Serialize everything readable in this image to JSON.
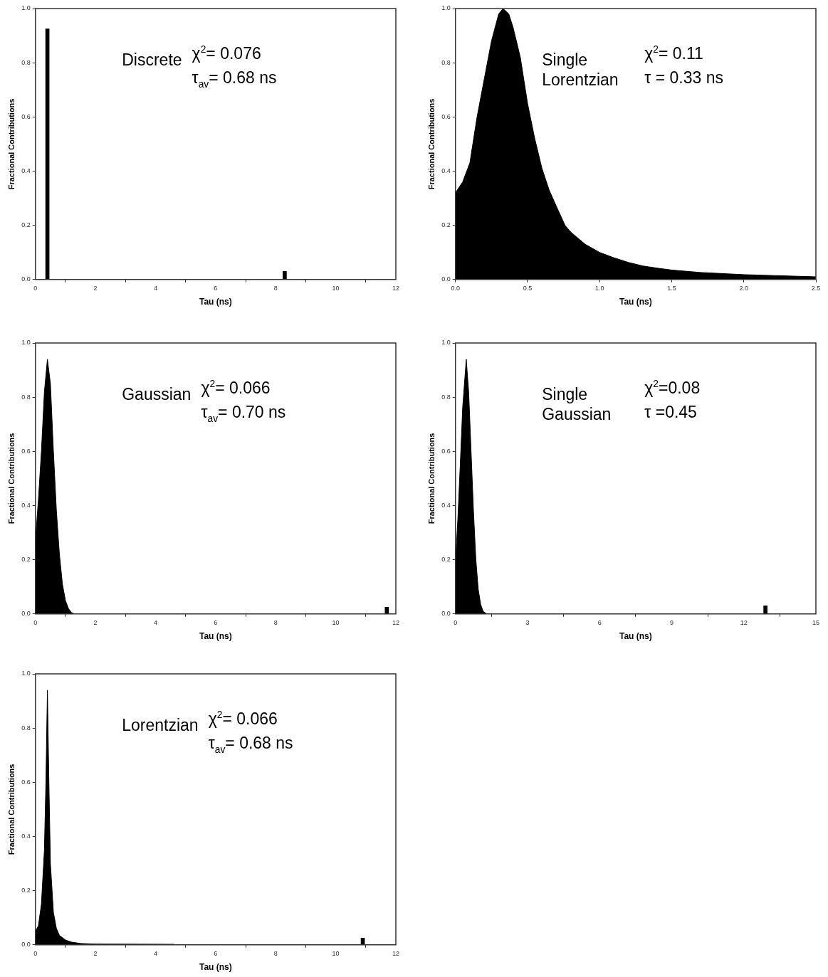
{
  "chart_data": [
    {
      "type": "bar",
      "xlabel": "Tau (ns)",
      "ylabel": "Fractional Contributions",
      "xlim": [
        0,
        12
      ],
      "ylim": [
        0,
        1
      ],
      "xticks": [
        0,
        2,
        4,
        6,
        8,
        10,
        12
      ],
      "yticks": [
        {
          "value": 0,
          "label": "0.0"
        },
        {
          "value": 0.2,
          "label": "0.2"
        },
        {
          "value": 0.4,
          "label": "0.4"
        },
        {
          "value": 0.6,
          "label": "0.6"
        },
        {
          "value": 0.8,
          "label": "0.8"
        },
        {
          "value": 1,
          "label": "1.0"
        }
      ],
      "annotations": [
        "Discrete",
        "χ$^{2}$= 0.076",
        "τ$_{av}$= 0.68 ns"
      ],
      "series": [
        {
          "color": "#000000",
          "x": [
            0.4,
            8.3
          ],
          "values": [
            0.925,
            0.03
          ]
        }
      ]
    },
    {
      "type": "area",
      "xlabel": "Tau (ns)",
      "ylabel": "Fractional Contributions",
      "xlim": [
        0,
        2.5
      ],
      "ylim": [
        0,
        1
      ],
      "xticks": [
        {
          "value": 0,
          "label": "0.0"
        },
        {
          "value": 0.5,
          "label": "0.5"
        },
        {
          "value": 1,
          "label": "1.0"
        },
        {
          "value": 1.5,
          "label": "1.5"
        },
        {
          "value": 2,
          "label": "2.0"
        },
        {
          "value": 2.5,
          "label": "2.5"
        }
      ],
      "yticks": [
        {
          "value": 0,
          "label": "0.0"
        },
        {
          "value": 0.2,
          "label": "0.2"
        },
        {
          "value": 0.4,
          "label": "0.4"
        },
        {
          "value": 0.6,
          "label": "0.6"
        },
        {
          "value": 0.8,
          "label": "0.8"
        },
        {
          "value": 1,
          "label": "1.0"
        }
      ],
      "annotations": [
        "Single Lorentzian",
        "χ$^{2}$= 0.11",
        "τ = 0.33 ns"
      ],
      "series": [
        {
          "color": "#000000",
          "x": [
            0,
            0.05,
            0.1,
            0.15,
            0.2,
            0.25,
            0.3,
            0.33,
            0.37,
            0.4,
            0.45,
            0.5,
            0.55,
            0.6,
            0.65,
            0.7,
            0.76,
            0.8,
            0.9,
            1.0,
            1.1,
            1.2,
            1.3,
            1.4,
            1.5,
            1.7,
            2.0,
            2.5
          ],
          "values": [
            0.32,
            0.36,
            0.43,
            0.6,
            0.74,
            0.88,
            0.98,
            1.0,
            0.98,
            0.93,
            0.82,
            0.65,
            0.52,
            0.41,
            0.33,
            0.27,
            0.2,
            0.175,
            0.13,
            0.1,
            0.08,
            0.063,
            0.05,
            0.042,
            0.035,
            0.026,
            0.018,
            0.01
          ]
        }
      ]
    },
    {
      "type": "area",
      "xlabel": "Tau (ns)",
      "ylabel": "Fractional Contributions",
      "xlim": [
        0,
        12
      ],
      "ylim": [
        0,
        1
      ],
      "xticks": [
        0,
        2,
        4,
        6,
        8,
        10,
        12
      ],
      "yticks": [
        {
          "value": 0,
          "label": "0.0"
        },
        {
          "value": 0.2,
          "label": "0.2"
        },
        {
          "value": 0.4,
          "label": "0.4"
        },
        {
          "value": 0.6,
          "label": "0.6"
        },
        {
          "value": 0.8,
          "label": "0.8"
        },
        {
          "value": 1,
          "label": "1.0"
        }
      ],
      "annotations": [
        "Gaussian",
        "χ$^{2}$= 0.066",
        "τ$_{av}$= 0.70 ns"
      ],
      "series": [
        {
          "color": "#000000",
          "x": [
            0,
            0.1,
            0.2,
            0.3,
            0.4,
            0.5,
            0.6,
            0.7,
            0.8,
            0.9,
            1.0,
            1.1,
            1.2,
            1.3,
            12
          ],
          "values": [
            0.27,
            0.42,
            0.6,
            0.82,
            0.94,
            0.85,
            0.6,
            0.38,
            0.22,
            0.11,
            0.05,
            0.02,
            0.005,
            0,
            0
          ]
        },
        {
          "type": "bar",
          "color": "#000000",
          "x": [
            11.7
          ],
          "values": [
            0.025
          ]
        }
      ]
    },
    {
      "type": "area",
      "xlabel": "Tau (ns)",
      "ylabel": "Fractional Contributions",
      "xlim": [
        0,
        15
      ],
      "ylim": [
        0,
        1
      ],
      "xticks": [
        0,
        3,
        6,
        9,
        12,
        15
      ],
      "yticks": [
        {
          "value": 0,
          "label": "0.0"
        },
        {
          "value": 0.2,
          "label": "0.2"
        },
        {
          "value": 0.4,
          "label": "0.4"
        },
        {
          "value": 0.6,
          "label": "0.6"
        },
        {
          "value": 0.8,
          "label": "0.8"
        },
        {
          "value": 1,
          "label": "1.0"
        }
      ],
      "annotations": [
        "Single Gaussian",
        "χ$^{2}$=0.08",
        "τ =0.45"
      ],
      "series": [
        {
          "color": "#000000",
          "x": [
            0,
            0.1,
            0.2,
            0.3,
            0.45,
            0.55,
            0.65,
            0.75,
            0.85,
            0.95,
            1.05,
            1.15,
            1.3,
            15
          ],
          "values": [
            0.19,
            0.35,
            0.55,
            0.76,
            0.94,
            0.82,
            0.6,
            0.38,
            0.2,
            0.09,
            0.035,
            0.01,
            0,
            0
          ]
        },
        {
          "type": "bar",
          "color": "#000000",
          "x": [
            12.9
          ],
          "values": [
            0.03
          ]
        }
      ]
    },
    {
      "type": "area",
      "xlabel": "Tau (ns)",
      "ylabel": "Fractional Contributions",
      "xlim": [
        0,
        12
      ],
      "ylim": [
        0,
        1
      ],
      "xticks": [
        0,
        2,
        4,
        6,
        8,
        10,
        12
      ],
      "yticks": [
        {
          "value": 0,
          "label": "0.0"
        },
        {
          "value": 0.2,
          "label": "0.2"
        },
        {
          "value": 0.4,
          "label": "0.4"
        },
        {
          "value": 0.6,
          "label": "0.6"
        },
        {
          "value": 0.8,
          "label": "0.8"
        },
        {
          "value": 1,
          "label": "1.0"
        }
      ],
      "annotations": [
        "Lorentzian",
        "χ$^{2}$= 0.066",
        "τ$_{av}$= 0.68 ns"
      ],
      "series": [
        {
          "color": "#000000",
          "x": [
            0,
            0.1,
            0.2,
            0.3,
            0.35,
            0.4,
            0.45,
            0.5,
            0.6,
            0.7,
            0.8,
            1.0,
            1.2,
            1.5,
            2.0,
            4.6,
            4.65,
            12
          ],
          "values": [
            0.05,
            0.07,
            0.15,
            0.35,
            0.6,
            0.94,
            0.6,
            0.3,
            0.12,
            0.06,
            0.035,
            0.018,
            0.01,
            0.005,
            0.003,
            0.002,
            0,
            0
          ]
        },
        {
          "type": "bar",
          "color": "#000000",
          "x": [
            10.9
          ],
          "values": [
            0.025
          ]
        }
      ]
    }
  ]
}
